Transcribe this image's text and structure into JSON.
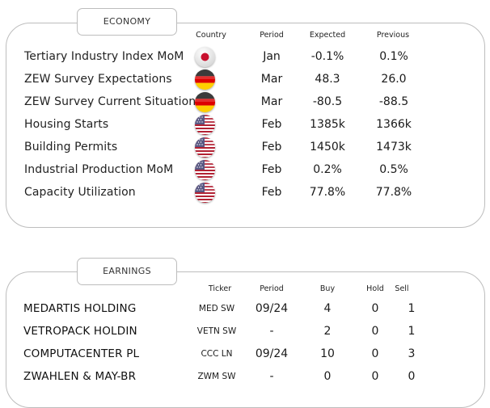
{
  "economy": {
    "title": "ECONOMY",
    "columns": {
      "country": "Country",
      "period": "Period",
      "expected": "Expected",
      "previous": "Previous"
    },
    "rows": [
      {
        "indicator": "Tertiary Industry Index MoM",
        "country_flag": "japan-flag",
        "period": "Jan",
        "expected": "-0.1%",
        "previous": "0.1%"
      },
      {
        "indicator": "ZEW Survey Expectations",
        "country_flag": "germany-flag",
        "period": "Mar",
        "expected": "48.3",
        "previous": "26.0"
      },
      {
        "indicator": "ZEW Survey Current Situation",
        "country_flag": "germany-flag",
        "period": "Mar",
        "expected": "-80.5",
        "previous": "-88.5"
      },
      {
        "indicator": "Housing Starts",
        "country_flag": "usa-flag",
        "period": "Feb",
        "expected": "1385k",
        "previous": "1366k"
      },
      {
        "indicator": "Building Permits",
        "country_flag": "usa-flag",
        "period": "Feb",
        "expected": "1450k",
        "previous": "1473k"
      },
      {
        "indicator": "Industrial Production MoM",
        "country_flag": "usa-flag",
        "period": "Feb",
        "expected": "0.2%",
        "previous": "0.5%"
      },
      {
        "indicator": "Capacity Utilization",
        "country_flag": "usa-flag",
        "period": "Feb",
        "expected": "77.8%",
        "previous": "77.8%"
      }
    ]
  },
  "earnings": {
    "title": "EARNINGS",
    "columns": {
      "ticker": "Ticker",
      "period": "Period",
      "buy": "Buy",
      "hold": "Hold",
      "sell": "Sell"
    },
    "rows": [
      {
        "company": "MEDARTIS HOLDING",
        "ticker": "MED SW",
        "period": "09/24",
        "buy": "4",
        "hold": "0",
        "sell": "1"
      },
      {
        "company": "VETROPACK HOLDIN",
        "ticker": "VETN SW",
        "period": "-",
        "buy": "2",
        "hold": "0",
        "sell": "1"
      },
      {
        "company": "COMPUTACENTER PL",
        "ticker": "CCC LN",
        "period": "09/24",
        "buy": "10",
        "hold": "0",
        "sell": "3"
      },
      {
        "company": "ZWAHLEN & MAY-BR",
        "ticker": "ZWM SW",
        "period": "-",
        "buy": "0",
        "hold": "0",
        "sell": "0"
      }
    ]
  }
}
